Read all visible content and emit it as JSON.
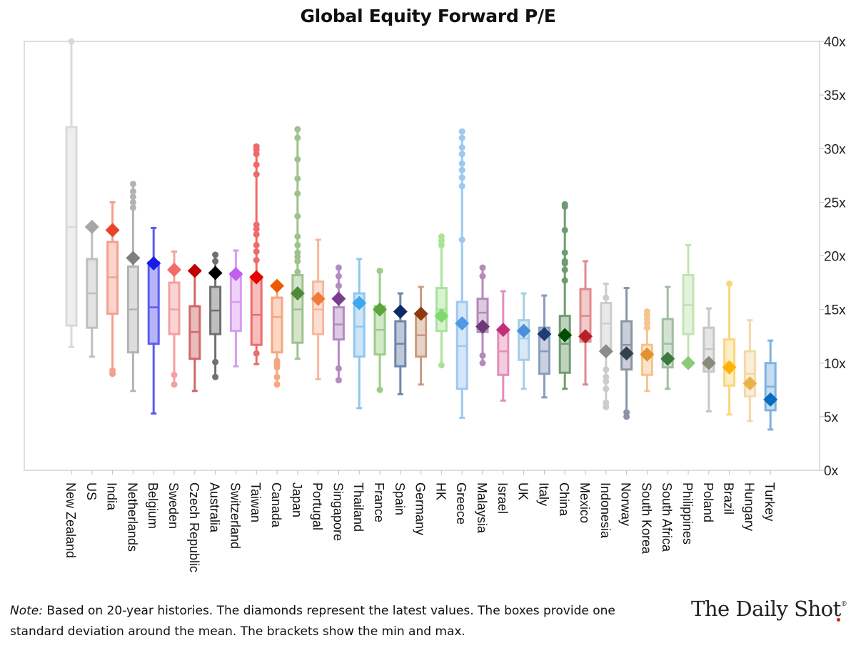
{
  "chart_data": {
    "type": "box",
    "title": "Global Equity Forward P/E",
    "ylim": [
      0,
      40
    ],
    "y_ticks": [
      "0x",
      "5x",
      "10x",
      "15x",
      "20x",
      "25x",
      "30x",
      "35x",
      "40x"
    ],
    "y_tick_values": [
      0,
      5,
      10,
      15,
      20,
      25,
      30,
      35,
      40
    ],
    "y_axis_side": "right",
    "grid": false,
    "legend": "none",
    "series": [
      {
        "name": "New Zealand",
        "color": "#d9d9d9",
        "min": 11.5,
        "max": 40.0,
        "box_low": 13.5,
        "box_high": 32.0,
        "mean": 22.7,
        "latest": null,
        "outliers": [
          40.0
        ]
      },
      {
        "name": "US",
        "color": "#bfbfbf",
        "min": 10.6,
        "max": 23.0,
        "box_low": 13.3,
        "box_high": 19.7,
        "mean": 16.5,
        "latest": 22.7,
        "outliers": []
      },
      {
        "name": "India",
        "color": "#f4a08f",
        "min": 9.1,
        "max": 25.0,
        "box_low": 14.6,
        "box_high": 21.3,
        "mean": 18.0,
        "latest": 22.4,
        "outliers": [
          9.0,
          9.3
        ]
      },
      {
        "name": "Netherlands",
        "color": "#b3b3b3",
        "min": 7.4,
        "max": 26.7,
        "box_low": 11.0,
        "box_high": 19.0,
        "mean": 15.0,
        "latest": 19.8,
        "outliers": [
          24.5,
          25.0,
          25.5,
          26.0,
          26.7
        ]
      },
      {
        "name": "Belgium",
        "color": "#5b5bf0",
        "min": 5.3,
        "max": 22.6,
        "box_low": 11.8,
        "box_high": 19.4,
        "mean": 15.2,
        "latest": 19.3,
        "outliers": []
      },
      {
        "name": "Sweden",
        "color": "#f4a0a0",
        "min": 8.1,
        "max": 20.4,
        "box_low": 12.7,
        "box_high": 17.5,
        "mean": 15.0,
        "latest": 18.7,
        "outliers": [
          8.0,
          8.9
        ]
      },
      {
        "name": "Czech Republic",
        "color": "#d06868",
        "min": 7.4,
        "max": 18.7,
        "box_low": 10.4,
        "box_high": 15.3,
        "mean": 12.9,
        "latest": 18.6,
        "outliers": []
      },
      {
        "name": "Australia",
        "color": "#707070",
        "min": 8.8,
        "max": 20.1,
        "box_low": 12.7,
        "box_high": 17.1,
        "mean": 14.9,
        "latest": 18.4,
        "outliers": [
          8.7,
          10.1,
          19.5,
          20.1
        ]
      },
      {
        "name": "Switzerland",
        "color": "#d99bf0",
        "min": 9.7,
        "max": 20.5,
        "box_low": 13.0,
        "box_high": 18.4,
        "mean": 15.7,
        "latest": 18.3,
        "outliers": []
      },
      {
        "name": "Taiwan",
        "color": "#ec6c6c",
        "min": 9.9,
        "max": 30.3,
        "box_low": 11.7,
        "box_high": 18.1,
        "mean": 14.5,
        "latest": 18.0,
        "outliers": [
          10.9,
          19.6,
          20.4,
          21.0,
          22.0,
          22.5,
          22.9,
          27.6,
          28.5,
          29.5,
          29.9,
          30.2
        ]
      },
      {
        "name": "Canada",
        "color": "#f7a680",
        "min": 8.1,
        "max": 17.3,
        "box_low": 11.0,
        "box_high": 16.1,
        "mean": 14.3,
        "latest": 17.2,
        "outliers": [
          8.0,
          8.7,
          9.6,
          9.9,
          10.2
        ]
      },
      {
        "name": "Japan",
        "color": "#9fc28c",
        "min": 10.4,
        "max": 31.8,
        "box_low": 11.9,
        "box_high": 18.2,
        "mean": 15.0,
        "latest": 16.5,
        "outliers": [
          18.5,
          19.5,
          19.9,
          20.3,
          21.0,
          21.8,
          23.7,
          25.8,
          27.2,
          29.0,
          31.0,
          31.8
        ]
      },
      {
        "name": "Portugal",
        "color": "#f7b79a",
        "min": 8.5,
        "max": 21.5,
        "box_low": 12.7,
        "box_high": 17.6,
        "mean": 15.0,
        "latest": 16.0,
        "outliers": []
      },
      {
        "name": "Singapore",
        "color": "#b48ac2",
        "min": 8.5,
        "max": 18.9,
        "box_low": 12.2,
        "box_high": 15.2,
        "mean": 13.6,
        "latest": 16.0,
        "outliers": [
          8.4,
          9.5,
          17.2,
          18.1,
          18.9
        ]
      },
      {
        "name": "Thailand",
        "color": "#8fc7ee",
        "min": 5.8,
        "max": 19.7,
        "box_low": 10.6,
        "box_high": 16.5,
        "mean": 13.4,
        "latest": 15.6,
        "outliers": []
      },
      {
        "name": "France",
        "color": "#9ccd86",
        "min": 7.5,
        "max": 18.7,
        "box_low": 10.8,
        "box_high": 15.3,
        "mean": 13.1,
        "latest": 15.0,
        "outliers": [
          7.5,
          18.6
        ]
      },
      {
        "name": "Spain",
        "color": "#6f85a8",
        "min": 7.1,
        "max": 16.5,
        "box_low": 9.7,
        "box_high": 13.9,
        "mean": 11.8,
        "latest": 14.8,
        "outliers": []
      },
      {
        "name": "Germany",
        "color": "#c99a7f",
        "min": 8.0,
        "max": 17.1,
        "box_low": 10.6,
        "box_high": 14.4,
        "mean": 12.6,
        "latest": 14.6,
        "outliers": []
      },
      {
        "name": "HK",
        "color": "#a9e39a",
        "min": 9.8,
        "max": 21.8,
        "box_low": 13.0,
        "box_high": 17.0,
        "mean": 15.0,
        "latest": 14.4,
        "outliers": [
          9.8,
          21.0,
          21.4,
          21.8
        ]
      },
      {
        "name": "Greece",
        "color": "#9fc8f0",
        "min": 4.9,
        "max": 31.6,
        "box_low": 7.6,
        "box_high": 15.7,
        "mean": 11.6,
        "latest": 13.7,
        "outliers": [
          21.5,
          26.5,
          27.3,
          28.0,
          28.6,
          29.5,
          30.1,
          31.0,
          31.6
        ]
      },
      {
        "name": "Malaysia",
        "color": "#b48ab8",
        "min": 10.0,
        "max": 18.9,
        "box_low": 12.9,
        "box_high": 16.0,
        "mean": 14.7,
        "latest": 13.4,
        "outliers": [
          10.0,
          10.7,
          18.1,
          18.9
        ]
      },
      {
        "name": "Israel",
        "color": "#e58db8",
        "min": 6.5,
        "max": 16.7,
        "box_low": 8.9,
        "box_high": 13.1,
        "mean": 11.1,
        "latest": 13.1,
        "outliers": []
      },
      {
        "name": "UK",
        "color": "#a8cde8",
        "min": 7.6,
        "max": 16.5,
        "box_low": 10.3,
        "box_high": 14.0,
        "mean": 12.3,
        "latest": 13.0,
        "outliers": []
      },
      {
        "name": "Italy",
        "color": "#8a9cbd",
        "min": 6.8,
        "max": 16.3,
        "box_low": 9.0,
        "box_high": 13.3,
        "mean": 11.1,
        "latest": 12.7,
        "outliers": []
      },
      {
        "name": "China",
        "color": "#6f9c6f",
        "min": 7.6,
        "max": 24.8,
        "box_low": 9.1,
        "box_high": 14.4,
        "mean": 11.8,
        "latest": 12.6,
        "outliers": [
          17.7,
          18.7,
          19.3,
          19.5,
          20.3,
          22.4,
          24.6,
          24.8
        ]
      },
      {
        "name": "Mexico",
        "color": "#e08a8a",
        "min": 8.0,
        "max": 19.5,
        "box_low": 12.0,
        "box_high": 16.9,
        "mean": 14.4,
        "latest": 12.5,
        "outliers": []
      },
      {
        "name": "Indonesia",
        "color": "#cccccc",
        "min": 6.0,
        "max": 17.4,
        "box_low": 11.0,
        "box_high": 15.6,
        "mean": 13.7,
        "latest": 11.1,
        "outliers": [
          5.9,
          6.3,
          7.6,
          8.3,
          8.7,
          9.4,
          16.1
        ]
      },
      {
        "name": "Norway",
        "color": "#8a95a5",
        "min": 5.4,
        "max": 17.0,
        "box_low": 9.4,
        "box_high": 13.9,
        "mean": 11.7,
        "latest": 10.9,
        "outliers": [
          5.0,
          5.4
        ]
      },
      {
        "name": "South Korea",
        "color": "#f6c48c",
        "min": 7.4,
        "max": 14.9,
        "box_low": 8.9,
        "box_high": 11.7,
        "mean": 10.5,
        "latest": 10.8,
        "outliers": [
          13.3,
          13.7,
          14.1,
          14.5,
          14.8
        ]
      },
      {
        "name": "South Africa",
        "color": "#9fbf9f",
        "min": 7.6,
        "max": 17.1,
        "box_low": 9.6,
        "box_high": 14.1,
        "mean": 11.8,
        "latest": 10.4,
        "outliers": []
      },
      {
        "name": "Philippines",
        "color": "#c3e3b1",
        "min": 10.0,
        "max": 21.0,
        "box_low": 12.7,
        "box_high": 18.2,
        "mean": 15.4,
        "latest": 10.0,
        "outliers": []
      },
      {
        "name": "Poland",
        "color": "#c6c6c6",
        "min": 5.5,
        "max": 15.1,
        "box_low": 9.2,
        "box_high": 13.3,
        "mean": 11.3,
        "latest": 10.0,
        "outliers": []
      },
      {
        "name": "Brazil",
        "color": "#f8d77c",
        "min": 5.2,
        "max": 17.4,
        "box_low": 7.9,
        "box_high": 12.2,
        "mean": 10.0,
        "latest": 9.6,
        "outliers": [
          17.4
        ]
      },
      {
        "name": "Hungary",
        "color": "#f4d9a8",
        "min": 4.6,
        "max": 14.0,
        "box_low": 6.9,
        "box_high": 11.1,
        "mean": 9.0,
        "latest": 8.1,
        "outliers": []
      },
      {
        "name": "Turkey",
        "color": "#7eb2e0",
        "min": 3.8,
        "max": 12.1,
        "box_low": 5.6,
        "box_high": 10.0,
        "mean": 7.8,
        "latest": 6.6,
        "outliers": []
      }
    ],
    "latest_colors": {
      "US": "#a6a6a6",
      "India": "#e8442c",
      "Netherlands": "#7f7f7f",
      "Belgium": "#1a1ae6",
      "Sweden": "#f26b6b",
      "Czech Republic": "#c00000",
      "Australia": "#000000",
      "Switzerland": "#c45ef0",
      "Taiwan": "#e60000",
      "Canada": "#f05a00",
      "Japan": "#4e8a3a",
      "Portugal": "#f07a3a",
      "Singapore": "#7a3d8c",
      "Thailand": "#3fa6f0",
      "France": "#59a63a",
      "Spain": "#0d2a66",
      "Germany": "#8c3a0d",
      "HK": "#7fd96b",
      "Greece": "#4d9ae6",
      "Malaysia": "#6b3a7a",
      "Israel": "#c2307a",
      "UK": "#4a90d9",
      "Italy": "#1f3f73",
      "China": "#004d00",
      "Mexico": "#b81f2a",
      "Indonesia": "#8c8c8c",
      "Norway": "#33404d",
      "South Korea": "#e0922e",
      "South Africa": "#3d7a3d",
      "Philippines": "#8ec879",
      "Poland": "#8a8a7a",
      "Brazil": "#ffb300",
      "Hungary": "#e8b44a",
      "Turkey": "#0a6bc2"
    }
  },
  "note": {
    "label": "Note:",
    "text": " Based on 20-year histories. The diamonds represent the latest values. The boxes provide one standard deviation around the mean. The brackets show the min and max."
  },
  "brand": {
    "name": "The Daily Shot",
    "mark": "®"
  }
}
